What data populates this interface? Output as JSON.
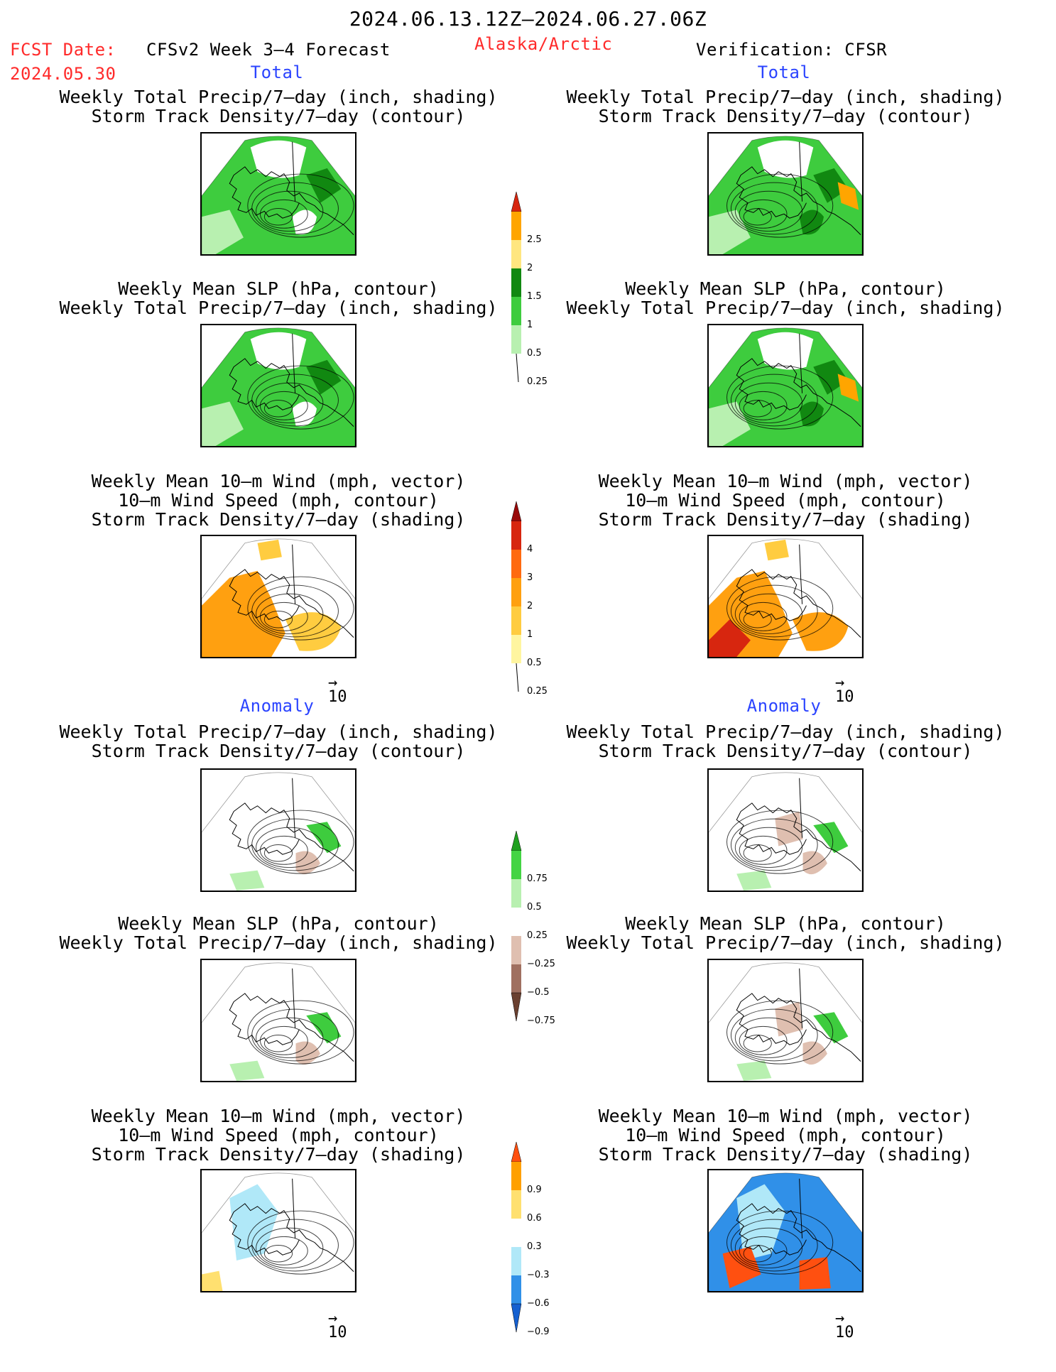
{
  "header": {
    "date_range": "2024.06.13.12Z–2024.06.27.06Z",
    "fcst_label": "FCST Date:",
    "fcst_date": "2024.05.30",
    "product": "CFSv2 Week 3–4 Forecast",
    "region": "Alaska/Arctic",
    "verification": "Verification: CFSR"
  },
  "sections": {
    "total_left": "Total",
    "total_right": "Total",
    "anomaly_left": "Anomaly",
    "anomaly_right": "Anomaly"
  },
  "panel_titles": {
    "precip_storm": [
      "Weekly Total Precip/7–day (inch, shading)",
      "Storm Track Density/7–day (contour)"
    ],
    "slp_precip": [
      "Weekly Mean SLP (hPa, contour)",
      "Weekly Total Precip/7–day (inch, shading)"
    ],
    "wind": [
      "Weekly Mean 10–m Wind (mph, vector)",
      "10–m Wind Speed (mph, contour)",
      "Storm Track Density/7–day (shading)"
    ]
  },
  "vector_ref": "10",
  "colorbars": {
    "total_precip": {
      "labels": [
        "2.5",
        "2",
        "1.5",
        "1",
        "0.5",
        "0.25"
      ],
      "colors": [
        "#d7260f",
        "#ffa500",
        "#ffe680",
        "#118811",
        "#3ecc3e",
        "#b8f0b0"
      ]
    },
    "total_storm": {
      "labels": [
        "4",
        "3",
        "2",
        "1",
        "0.5",
        "0.25"
      ],
      "colors": [
        "#9a0a0a",
        "#d7260f",
        "#ff6a10",
        "#ffa010",
        "#ffcc40",
        "#fff5a0"
      ]
    },
    "anom_precip": {
      "labels": [
        "0.75",
        "0.5",
        "0.25",
        "−0.25",
        "−0.5",
        "−0.75"
      ],
      "colors": [
        "#20a020",
        "#44d444",
        "#b8f0b0",
        "#ffffff",
        "#dfbfb0",
        "#a07060",
        "#6a4030"
      ]
    },
    "anom_storm": {
      "labels": [
        "0.9",
        "0.6",
        "0.3",
        "−0.3",
        "−0.6",
        "−0.9"
      ],
      "colors": [
        "#ff5010",
        "#ffa000",
        "#ffe070",
        "#ffffff",
        "#b0e8f8",
        "#3090e8",
        "#1560d0"
      ]
    }
  },
  "shading_colors": {
    "precip_green": "#3ecc3e",
    "precip_dark": "#118811",
    "precip_light": "#b8f0b0",
    "dry_brown": "#dfbfb0",
    "storm_orange": "#ffa010",
    "storm_red": "#d7260f",
    "storm_yellow": "#ffcc40",
    "anom_blue": "#3090e8",
    "anom_lightblue": "#b0e8f8"
  }
}
